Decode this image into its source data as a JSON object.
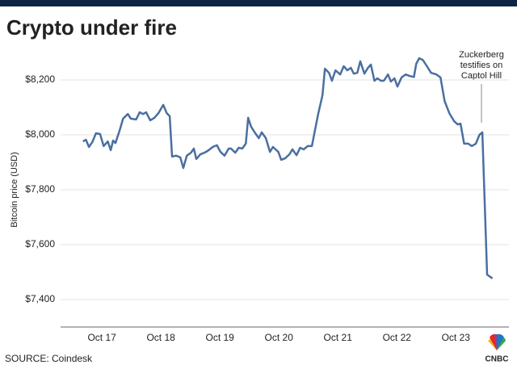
{
  "chart_data": {
    "type": "line",
    "title": "Crypto under fire",
    "y_label": "Bitcoin price (USD)",
    "source": "SOURCE: Coindesk",
    "logo": "CNBC",
    "annotation": [
      "Zuckerberg",
      "testifies on",
      "Captol Hill"
    ],
    "color": "#4a6fa0",
    "grid": true,
    "xlim": [
      16.3,
      23.9
    ],
    "xticks": [
      {
        "value": 17,
        "label": "Oct 17"
      },
      {
        "value": 18,
        "label": "Oct 18"
      },
      {
        "value": 19,
        "label": "Oct 19"
      },
      {
        "value": 20,
        "label": "Oct 20"
      },
      {
        "value": 21,
        "label": "Oct 21"
      },
      {
        "value": 22,
        "label": "Oct 22"
      },
      {
        "value": 23,
        "label": "Oct 23"
      }
    ],
    "ylim": [
      7300,
      8300
    ],
    "yticks": [
      {
        "value": 7400,
        "label": "$7,400"
      },
      {
        "value": 7600,
        "label": "$7,600"
      },
      {
        "value": 7800,
        "label": "$7,800"
      },
      {
        "value": 8000,
        "label": "$8,000"
      },
      {
        "value": 8200,
        "label": "$8,200"
      }
    ],
    "x": [
      16.68,
      16.73,
      16.78,
      16.84,
      16.9,
      16.97,
      17.03,
      17.1,
      17.15,
      17.19,
      17.23,
      17.3,
      17.36,
      17.44,
      17.49,
      17.58,
      17.64,
      17.7,
      17.75,
      17.82,
      17.89,
      17.96,
      18.04,
      18.1,
      18.15,
      18.19,
      18.26,
      18.33,
      18.38,
      18.44,
      18.51,
      18.56,
      18.6,
      18.67,
      18.74,
      18.81,
      18.88,
      18.95,
      19.01,
      19.08,
      19.15,
      19.19,
      19.26,
      19.32,
      19.38,
      19.44,
      19.48,
      19.53,
      19.6,
      19.66,
      19.71,
      19.78,
      19.85,
      19.9,
      19.99,
      20.04,
      20.11,
      20.18,
      20.23,
      20.3,
      20.36,
      20.42,
      20.49,
      20.56,
      20.62,
      20.67,
      20.74,
      20.78,
      20.85,
      20.9,
      20.96,
      21.04,
      21.1,
      21.16,
      21.22,
      21.27,
      21.33,
      21.38,
      21.45,
      21.51,
      21.56,
      21.62,
      21.67,
      21.73,
      21.78,
      21.85,
      21.9,
      21.96,
      22.01,
      22.08,
      22.15,
      22.22,
      22.29,
      22.33,
      22.38,
      22.44,
      22.51,
      22.58,
      22.67,
      22.74,
      22.81,
      22.89,
      22.97,
      23.03,
      23.08,
      23.14,
      23.21,
      23.27,
      23.34,
      23.4,
      23.45,
      23.53,
      23.62
    ],
    "values": [
      7976,
      7982,
      7956,
      7974,
      8006,
      8003,
      7959,
      7976,
      7944,
      7979,
      7970,
      8015,
      8059,
      8076,
      8059,
      8056,
      8082,
      8076,
      8082,
      8053,
      8062,
      8079,
      8109,
      8079,
      8068,
      7921,
      7924,
      7918,
      7879,
      7924,
      7935,
      7950,
      7912,
      7929,
      7935,
      7944,
      7956,
      7962,
      7938,
      7924,
      7950,
      7950,
      7935,
      7953,
      7950,
      7968,
      8062,
      8029,
      8006,
      7988,
      8009,
      7988,
      7938,
      7956,
      7938,
      7909,
      7915,
      7929,
      7947,
      7926,
      7953,
      7947,
      7959,
      7959,
      8026,
      8079,
      8144,
      8241,
      8226,
      8197,
      8235,
      8220,
      8250,
      8235,
      8244,
      8223,
      8226,
      8268,
      8223,
      8244,
      8256,
      8197,
      8206,
      8197,
      8197,
      8220,
      8194,
      8206,
      8176,
      8209,
      8220,
      8214,
      8211,
      8259,
      8279,
      8273,
      8250,
      8226,
      8220,
      8209,
      8123,
      8079,
      8050,
      8038,
      8041,
      7968,
      7968,
      7959,
      7968,
      8000,
      8009,
      7491,
      7477
    ]
  }
}
